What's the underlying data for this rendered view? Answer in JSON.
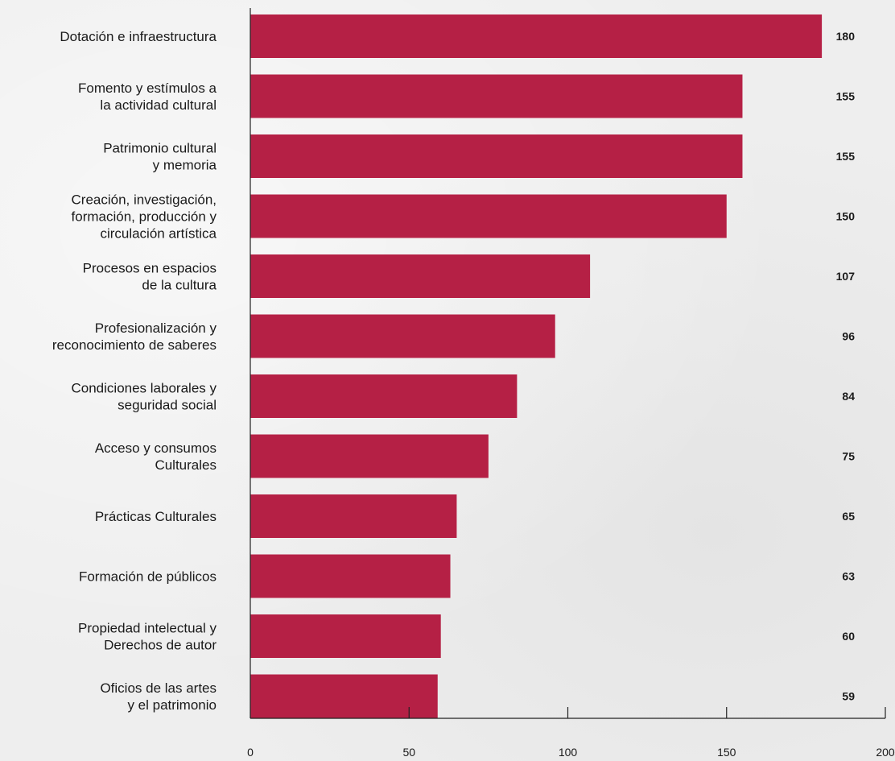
{
  "chart_data": {
    "type": "bar",
    "orientation": "horizontal",
    "categories": [
      [
        "Dotación e infraestructura"
      ],
      [
        "Fomento y estímulos a",
        "la actividad cultural"
      ],
      [
        "Patrimonio cultural",
        "y memoria"
      ],
      [
        "Creación, investigación,",
        "formación, producción y",
        "circulación artística"
      ],
      [
        "Procesos en espacios",
        "de la cultura"
      ],
      [
        "Profesionalización y",
        "reconocimiento de saberes"
      ],
      [
        "Condiciones laborales y",
        "seguridad social"
      ],
      [
        "Acceso y consumos",
        "Culturales"
      ],
      [
        "Prácticas Culturales"
      ],
      [
        "Formación de públicos"
      ],
      [
        "Propiedad intelectual y",
        "Derechos de autor"
      ],
      [
        "Oficios de las artes",
        "y el patrimonio"
      ]
    ],
    "values": [
      180,
      155,
      155,
      150,
      107,
      96,
      84,
      75,
      65,
      63,
      60,
      59
    ],
    "xlim": [
      0,
      200
    ],
    "x_ticks": [
      0,
      50,
      100,
      150,
      200
    ],
    "title": "",
    "xlabel": "",
    "ylabel": "",
    "grid": false,
    "legend": "none",
    "colors": {
      "bar": "#b52045",
      "axis": "#222222",
      "text": "#1a1a1a"
    }
  }
}
